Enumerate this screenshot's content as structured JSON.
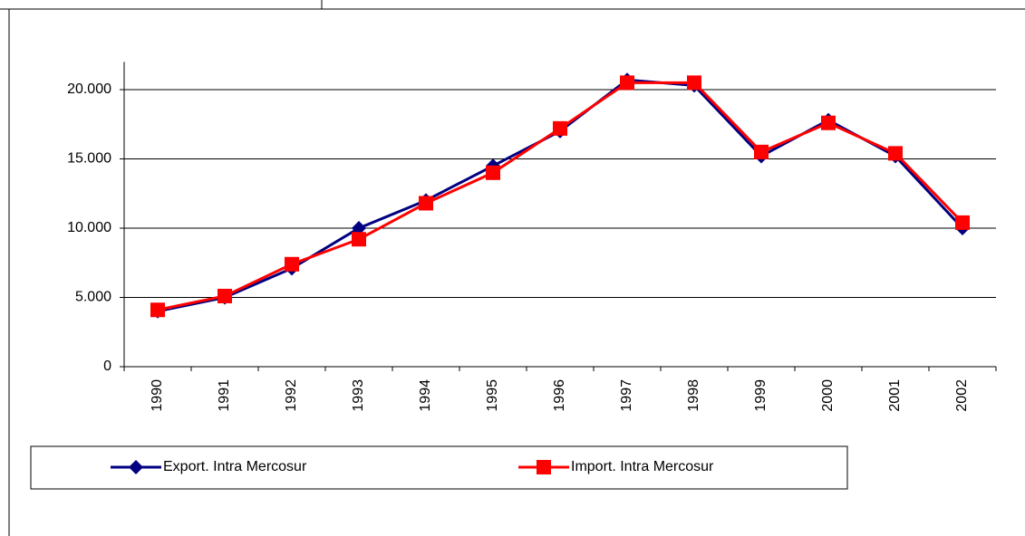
{
  "chart_data": {
    "type": "line",
    "categories": [
      "1990",
      "1991",
      "1992",
      "1993",
      "1994",
      "1995",
      "1996",
      "1997",
      "1998",
      "1999",
      "2000",
      "2001",
      "2002"
    ],
    "series": [
      {
        "name": "Export. Intra Mercosur",
        "color": "#000080",
        "marker": "diamond",
        "values": [
          4000,
          5000,
          7100,
          10000,
          12000,
          14500,
          17000,
          20700,
          20300,
          15200,
          17800,
          15200,
          10000
        ]
      },
      {
        "name": "Import. Intra Mercosur",
        "color": "#ff0000",
        "marker": "square",
        "values": [
          4100,
          5100,
          7400,
          9200,
          11800,
          14000,
          17200,
          20500,
          20500,
          15500,
          17600,
          15400,
          10400
        ]
      }
    ],
    "ylim": [
      0,
      22000
    ],
    "yticks": [
      0,
      {
        "value": 5000,
        "label": "5.000"
      },
      {
        "value": 10000,
        "label": "10.000"
      },
      {
        "value": 15000,
        "label": "15.000"
      },
      {
        "value": 20000,
        "label": "20.000"
      }
    ],
    "grid": true,
    "legend": "bottom"
  }
}
